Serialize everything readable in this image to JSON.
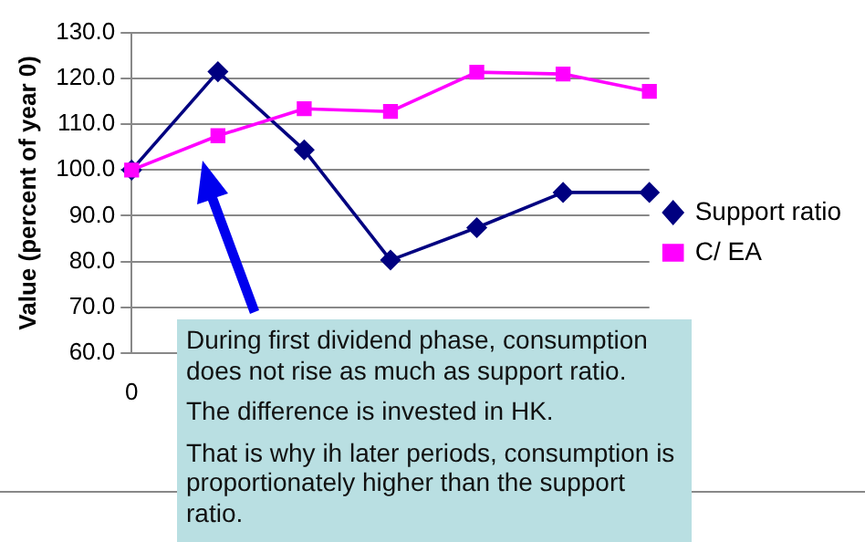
{
  "chart_data": {
    "type": "line",
    "ylabel": "Value (percent of year 0)",
    "categories": [
      "0",
      null,
      null,
      null,
      null,
      null,
      null
    ],
    "series": [
      {
        "name": "Support ratio",
        "color": "#000080",
        "marker": "diamond",
        "values": [
          100,
          121.5,
          104.4,
          80.3,
          87.4,
          95.1,
          95.1
        ]
      },
      {
        "name": "C/ EA",
        "color": "#ff00ff",
        "marker": "square",
        "values": [
          100,
          107.5,
          113.4,
          112.8,
          121.4,
          121.0,
          117.2
        ]
      }
    ],
    "ylim": [
      60,
      130
    ],
    "yticks": [
      {
        "value": 60,
        "label": "60.0"
      },
      {
        "value": 70,
        "label": "70.0"
      },
      {
        "value": 80,
        "label": "80.0"
      },
      {
        "value": 90,
        "label": "90.0"
      },
      {
        "value": 100,
        "label": "100.0"
      },
      {
        "value": 110,
        "label": "110.0"
      },
      {
        "value": 120,
        "label": "120.0"
      },
      {
        "value": 130,
        "label": "130.0"
      }
    ],
    "grid": "y",
    "legend": "right",
    "line_style": "solid",
    "annotations": [
      "During first dividend phase, consumption does not rise as much as support ratio.",
      "The difference is invested in HK.",
      "That is why ih later periods, consumption is proportionately higher than the support ratio."
    ]
  }
}
